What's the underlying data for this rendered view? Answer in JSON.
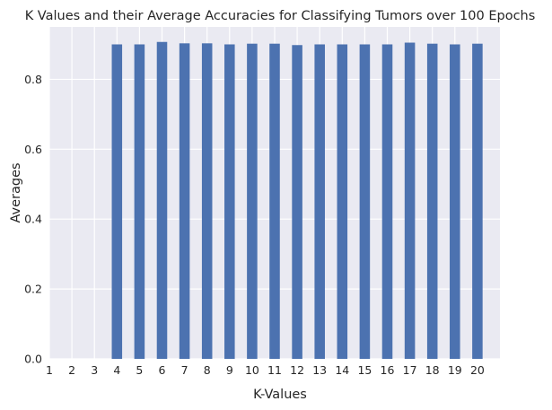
{
  "chart_data": {
    "type": "bar",
    "title": "K Values and their Average Accuracies for Classifying Tumors over 100 Epochs",
    "xlabel": "K-Values",
    "ylabel": "Averages",
    "categories": [
      "1",
      "2",
      "3",
      "4",
      "5",
      "6",
      "7",
      "8",
      "9",
      "10",
      "11",
      "12",
      "13",
      "14",
      "15",
      "16",
      "17",
      "18",
      "19",
      "20"
    ],
    "values": [
      0,
      0,
      0,
      0.9,
      0.9,
      0.907,
      0.903,
      0.903,
      0.9,
      0.902,
      0.902,
      0.898,
      0.9,
      0.9,
      0.9,
      0.9,
      0.905,
      0.902,
      0.9,
      0.902
    ],
    "yticks": [
      "0.0",
      "0.2",
      "0.4",
      "0.6",
      "0.8"
    ],
    "ytick_values": [
      0.0,
      0.2,
      0.4,
      0.6,
      0.8
    ],
    "ylim": [
      0,
      0.95
    ],
    "xlim": [
      1,
      21
    ],
    "grid": true,
    "colors": {
      "bar": "#4c72b0",
      "plot_background": "#eaeaf2",
      "grid": "#ffffff",
      "text": "#262626"
    }
  }
}
